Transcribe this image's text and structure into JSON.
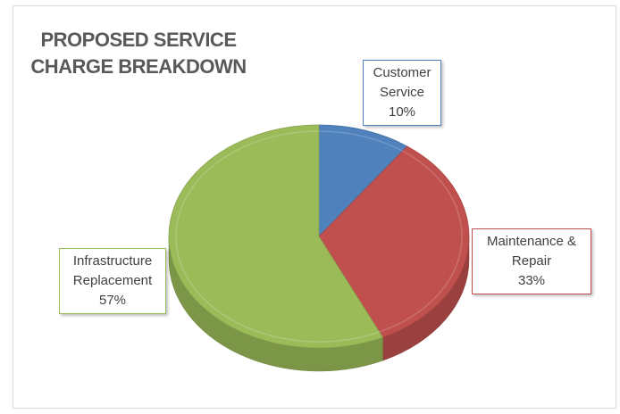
{
  "chart_data": {
    "type": "pie",
    "title": "PROPOSED SERVICE CHARGE BREAKDOWN",
    "categories": [
      "Customer Service",
      "Maintenance & Repair",
      "Infrastructure Replacement"
    ],
    "values": [
      10,
      33,
      57
    ],
    "value_labels": [
      "10%",
      "33%",
      "57%"
    ],
    "colors": [
      "#4f81bd",
      "#c0504d",
      "#9bbb59"
    ]
  }
}
